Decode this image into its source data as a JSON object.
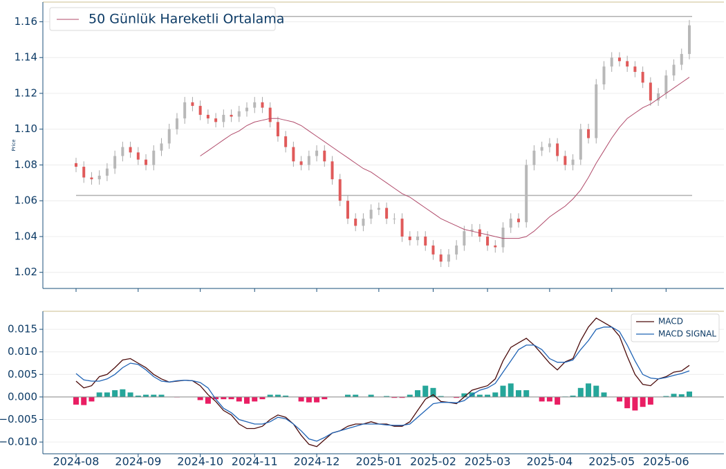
{
  "chart_data": [
    {
      "type": "candlestick",
      "ylabel": "Price",
      "open": [
        1.081,
        1.079,
        1.073,
        1.072,
        1.074,
        1.078,
        1.085,
        1.09,
        1.087,
        1.083,
        1.08,
        1.088,
        1.092,
        1.1,
        1.106,
        1.115,
        1.113,
        1.108,
        1.106,
        1.104,
        1.108,
        1.107,
        1.11,
        1.112,
        1.115,
        1.112,
        1.104,
        1.096,
        1.09,
        1.082,
        1.08,
        1.085,
        1.088,
        1.082,
        1.072,
        1.06,
        1.05,
        1.046,
        1.05,
        1.055,
        1.056,
        1.05,
        1.05,
        1.04,
        1.038,
        1.04,
        1.035,
        1.03,
        1.026,
        1.03,
        1.035,
        1.043,
        1.044,
        1.04,
        1.035,
        1.034,
        1.045,
        1.05,
        1.048,
        1.08,
        1.088,
        1.09,
        1.092,
        1.085,
        1.08,
        1.083,
        1.1,
        1.095,
        1.125,
        1.135,
        1.14,
        1.138,
        1.135,
        1.132,
        1.126,
        1.116,
        1.12,
        1.13,
        1.136,
        1.142
      ],
      "high": [
        1.084,
        1.082,
        1.076,
        1.077,
        1.081,
        1.088,
        1.093,
        1.093,
        1.09,
        1.086,
        1.091,
        1.095,
        1.103,
        1.109,
        1.118,
        1.118,
        1.116,
        1.111,
        1.109,
        1.111,
        1.111,
        1.113,
        1.115,
        1.118,
        1.118,
        1.115,
        1.107,
        1.099,
        1.093,
        1.085,
        1.088,
        1.091,
        1.091,
        1.085,
        1.075,
        1.063,
        1.053,
        1.053,
        1.058,
        1.059,
        1.059,
        1.053,
        1.053,
        1.043,
        1.043,
        1.043,
        1.038,
        1.033,
        1.033,
        1.038,
        1.046,
        1.047,
        1.047,
        1.043,
        1.038,
        1.048,
        1.053,
        1.053,
        1.083,
        1.091,
        1.093,
        1.095,
        1.095,
        1.088,
        1.086,
        1.103,
        1.103,
        1.128,
        1.138,
        1.143,
        1.143,
        1.141,
        1.138,
        1.135,
        1.129,
        1.123,
        1.133,
        1.139,
        1.145,
        1.161
      ],
      "low": [
        1.076,
        1.07,
        1.069,
        1.069,
        1.071,
        1.075,
        1.082,
        1.084,
        1.08,
        1.077,
        1.077,
        1.085,
        1.089,
        1.097,
        1.103,
        1.11,
        1.105,
        1.103,
        1.101,
        1.101,
        1.104,
        1.104,
        1.107,
        1.109,
        1.109,
        1.101,
        1.093,
        1.087,
        1.079,
        1.077,
        1.077,
        1.082,
        1.079,
        1.069,
        1.057,
        1.047,
        1.043,
        1.043,
        1.047,
        1.052,
        1.047,
        1.047,
        1.037,
        1.035,
        1.035,
        1.032,
        1.027,
        1.023,
        1.023,
        1.027,
        1.032,
        1.04,
        1.037,
        1.032,
        1.031,
        1.031,
        1.042,
        1.045,
        1.045,
        1.077,
        1.085,
        1.087,
        1.082,
        1.077,
        1.077,
        1.08,
        1.092,
        1.092,
        1.122,
        1.132,
        1.135,
        1.132,
        1.129,
        1.123,
        1.113,
        1.113,
        1.117,
        1.127,
        1.133,
        1.139
      ],
      "close": [
        1.079,
        1.073,
        1.072,
        1.074,
        1.078,
        1.085,
        1.09,
        1.087,
        1.083,
        1.08,
        1.088,
        1.092,
        1.1,
        1.106,
        1.115,
        1.113,
        1.108,
        1.106,
        1.104,
        1.108,
        1.107,
        1.11,
        1.112,
        1.115,
        1.112,
        1.104,
        1.096,
        1.09,
        1.082,
        1.08,
        1.085,
        1.088,
        1.082,
        1.072,
        1.06,
        1.05,
        1.046,
        1.05,
        1.055,
        1.056,
        1.05,
        1.05,
        1.04,
        1.038,
        1.04,
        1.035,
        1.03,
        1.026,
        1.03,
        1.035,
        1.043,
        1.044,
        1.04,
        1.035,
        1.034,
        1.045,
        1.05,
        1.048,
        1.08,
        1.088,
        1.09,
        1.092,
        1.085,
        1.08,
        1.083,
        1.1,
        1.095,
        1.125,
        1.135,
        1.14,
        1.138,
        1.135,
        1.132,
        1.126,
        1.116,
        1.12,
        1.13,
        1.136,
        1.142,
        1.158
      ],
      "up_color": "#b8b8b8",
      "down_color": "#e05a5a",
      "series": [
        {
          "name": "50 Günlük Hareketli Ortalama",
          "color": "#b04a6a",
          "values": [
            null,
            null,
            null,
            null,
            null,
            null,
            null,
            null,
            null,
            null,
            null,
            null,
            null,
            null,
            null,
            null,
            1.085,
            1.088,
            1.091,
            1.094,
            1.097,
            1.099,
            1.102,
            1.104,
            1.105,
            1.106,
            1.106,
            1.105,
            1.104,
            1.102,
            1.099,
            1.096,
            1.093,
            1.09,
            1.087,
            1.084,
            1.081,
            1.078,
            1.076,
            1.073,
            1.07,
            1.067,
            1.064,
            1.062,
            1.059,
            1.056,
            1.053,
            1.05,
            1.048,
            1.046,
            1.044,
            1.043,
            1.042,
            1.041,
            1.04,
            1.039,
            1.039,
            1.039,
            1.04,
            1.043,
            1.047,
            1.051,
            1.054,
            1.057,
            1.061,
            1.066,
            1.073,
            1.081,
            1.088,
            1.095,
            1.101,
            1.106,
            1.109,
            1.112,
            1.114,
            1.117,
            1.12,
            1.123,
            1.126,
            1.129
          ]
        }
      ],
      "hlines": [
        1.063,
        1.163
      ],
      "hline_color": "#b0b0b0",
      "ylim": [
        1.011,
        1.171
      ],
      "yticks": [
        1.02,
        1.04,
        1.06,
        1.08,
        {
          "value": 1.1,
          "label": "1.10"
        },
        1.12,
        1.14,
        1.16
      ],
      "grid": true,
      "legend": "upper left"
    },
    {
      "type": "macd",
      "categories": [
        "2024-08",
        null,
        null,
        null,
        null,
        null,
        null,
        null,
        "2024-09",
        null,
        null,
        null,
        null,
        null,
        null,
        null,
        "2024-10",
        null,
        null,
        null,
        null,
        null,
        null,
        "2024-11",
        null,
        null,
        null,
        null,
        null,
        null,
        null,
        "2024-12",
        null,
        null,
        null,
        null,
        null,
        null,
        null,
        "2025-01",
        null,
        null,
        null,
        null,
        null,
        null,
        "2025-02",
        null,
        null,
        null,
        null,
        null,
        null,
        "2025-03",
        null,
        null,
        null,
        null,
        null,
        null,
        null,
        "2025-04",
        null,
        null,
        null,
        null,
        null,
        null,
        null,
        "2025-05",
        null,
        null,
        null,
        null,
        null,
        null,
        "2025-06",
        null,
        null,
        null
      ],
      "series": [
        {
          "name": "MACD",
          "color": "#4a0a0a",
          "values": [
            0.0035,
            0.002,
            0.0025,
            0.0045,
            0.005,
            0.0065,
            0.0082,
            0.0085,
            0.0075,
            0.0065,
            0.005,
            0.004,
            0.0033,
            0.0035,
            0.0037,
            0.0036,
            0.0025,
            0.0005,
            -0.001,
            -0.003,
            -0.004,
            -0.006,
            -0.007,
            -0.007,
            -0.0065,
            -0.005,
            -0.004,
            -0.0045,
            -0.006,
            -0.0085,
            -0.0105,
            -0.011,
            -0.0095,
            -0.008,
            -0.0075,
            -0.0065,
            -0.006,
            -0.006,
            -0.0055,
            -0.006,
            -0.006,
            -0.0065,
            -0.0065,
            -0.0055,
            -0.003,
            -0.0005,
            0.0005,
            -0.001,
            -0.0012,
            -0.0015,
            0.0,
            0.0015,
            0.002,
            0.0025,
            0.004,
            0.008,
            0.011,
            0.012,
            0.013,
            0.0115,
            0.0095,
            0.0075,
            0.006,
            0.0078,
            0.0085,
            0.0125,
            0.0155,
            0.0175,
            0.0165,
            0.0155,
            0.0135,
            0.009,
            0.005,
            0.0028,
            0.0025,
            0.004,
            0.0045,
            0.0055,
            0.0058,
            0.007
          ]
        },
        {
          "name": "MACD SIGNAL",
          "color": "#1f63b5",
          "values": [
            0.0052,
            0.0038,
            0.0035,
            0.0035,
            0.004,
            0.005,
            0.0065,
            0.0075,
            0.0072,
            0.006,
            0.0045,
            0.0035,
            0.0033,
            0.0036,
            0.0037,
            0.0036,
            0.0032,
            0.002,
            -0.0005,
            -0.0025,
            -0.0035,
            -0.005,
            -0.0055,
            -0.006,
            -0.006,
            -0.0055,
            -0.0045,
            -0.0048,
            -0.006,
            -0.0075,
            -0.0093,
            -0.0098,
            -0.009,
            -0.008,
            -0.0075,
            -0.007,
            -0.0065,
            -0.006,
            -0.006,
            -0.006,
            -0.0062,
            -0.0063,
            -0.0063,
            -0.006,
            -0.0045,
            -0.003,
            -0.0015,
            -0.0012,
            -0.0012,
            -0.0013,
            -0.0008,
            0.0005,
            0.0015,
            0.002,
            0.003,
            0.0055,
            0.008,
            0.0105,
            0.0115,
            0.0115,
            0.0105,
            0.0085,
            0.0077,
            0.0077,
            0.0082,
            0.0105,
            0.0125,
            0.015,
            0.0155,
            0.0155,
            0.0145,
            0.0115,
            0.008,
            0.005,
            0.0042,
            0.004,
            0.0043,
            0.0048,
            0.0052,
            0.0058
          ]
        }
      ],
      "histogram": [
        -0.0017,
        -0.0018,
        -0.001,
        0.001,
        0.001,
        0.0015,
        0.0017,
        0.001,
        0.0003,
        0.0005,
        0.0005,
        0.0005,
        0,
        -0.0001,
        0,
        0,
        -0.0007,
        -0.0015,
        -0.0005,
        -0.0005,
        -0.0005,
        -0.001,
        -0.0015,
        -0.001,
        -0.0005,
        0.0005,
        0.0005,
        0.0003,
        0,
        -0.001,
        -0.0012,
        -0.0012,
        -0.0005,
        0,
        0,
        0.0005,
        0.0005,
        0,
        0.0005,
        0,
        0.0002,
        -0.0002,
        -0.0002,
        0.0005,
        0.0015,
        0.0025,
        0.002,
        0.0002,
        0,
        -0.0002,
        0.0008,
        0.001,
        0.0005,
        0.0005,
        0.001,
        0.0025,
        0.003,
        0.0015,
        0.0015,
        0,
        -0.001,
        -0.001,
        -0.0017,
        0.0001,
        0.0003,
        0.002,
        0.003,
        0.0025,
        0.001,
        0,
        -0.001,
        -0.0025,
        -0.003,
        -0.0022,
        -0.0017,
        0,
        0.0002,
        0.0007,
        0.0006,
        0.0012
      ],
      "hist_up_color": "#26a69a",
      "hist_down_color": "#e91e63",
      "ylim": [
        -0.0126,
        0.019
      ],
      "yticks": [
        {
          "value": -0.01,
          "label": "−0.010"
        },
        {
          "value": -0.005,
          "label": "−0.005"
        },
        {
          "value": 0,
          "label": "0.000"
        },
        0.005,
        {
          "value": 0.01,
          "label": "0.010"
        },
        0.015
      ],
      "grid": true,
      "legend": "upper right"
    }
  ]
}
